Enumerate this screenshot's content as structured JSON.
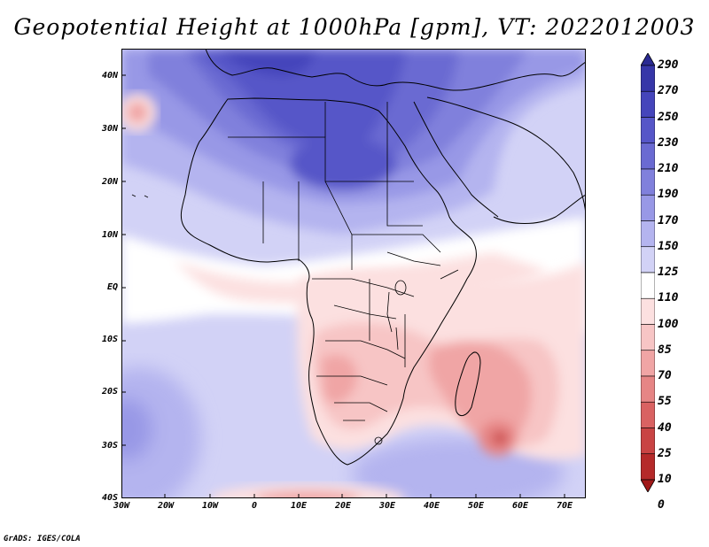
{
  "title": "Geopotential Height at 1000hPa [gpm], VT: 2022012003",
  "footer": "GrADS: IGES/COLA",
  "map": {
    "lat_labels": [
      "40N",
      "30N",
      "20N",
      "10N",
      "EQ",
      "10S",
      "20S",
      "30S",
      "40S"
    ],
    "lon_labels": [
      "30W",
      "20W",
      "10W",
      "0",
      "10E",
      "20E",
      "30E",
      "40E",
      "50E",
      "60E",
      "70E"
    ],
    "extent": {
      "lon": [
        -30,
        75
      ],
      "lat": [
        -40,
        45
      ]
    }
  },
  "colorbar": {
    "levels": [
      "290",
      "270",
      "250",
      "230",
      "210",
      "190",
      "170",
      "150",
      "125",
      "110",
      "100",
      "85",
      "70",
      "55",
      "40",
      "25",
      "10",
      "0"
    ],
    "colors": [
      "#2a2a92",
      "#3636a8",
      "#4545bb",
      "#5656c8",
      "#6a6ad2",
      "#8080dc",
      "#9898e6",
      "#b4b4ef",
      "#d2d2f6",
      "#ffffff",
      "#fce0e0",
      "#f7c5c5",
      "#f0a5a5",
      "#e68585",
      "#d96262",
      "#c94444",
      "#b52a2a",
      "#a01818"
    ]
  },
  "colors": {
    "ocean_neutral": "#ffffff",
    "low_red": "#e68585",
    "high_blue": "#5656c8"
  }
}
